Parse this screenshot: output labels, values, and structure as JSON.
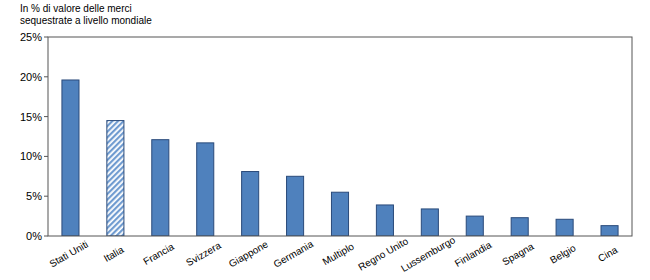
{
  "chart_data": {
    "type": "bar",
    "title": [
      "In % di valore delle merci",
      "sequestrate a livello mondiale"
    ],
    "categories": [
      "Stati Uniti",
      "Italia",
      "Francia",
      "Svizzera",
      "Giappone",
      "Germania",
      "Multiplo",
      "Regno Unito",
      "Lussemburgo",
      "Finlandia",
      "Spagna",
      "Belgio",
      "Cina"
    ],
    "values": [
      19.6,
      14.5,
      12.1,
      11.7,
      8.1,
      7.5,
      5.5,
      3.9,
      3.4,
      2.5,
      2.3,
      2.1,
      1.3
    ],
    "color": "#4f81bd",
    "colors": [
      "#4f81bd",
      "#6f9bd0",
      "#4f81bd",
      "#4f81bd",
      "#4f81bd",
      "#4f81bd",
      "#4f81bd",
      "#4f81bd",
      "#4f81bd",
      "#4f81bd",
      "#4f81bd",
      "#4f81bd",
      "#4f81bd"
    ],
    "ylim": [
      0,
      25
    ],
    "yticks": [
      {
        "value": 0,
        "label": "0%"
      },
      {
        "value": 5,
        "label": "5%"
      },
      {
        "value": 10,
        "label": "10%"
      },
      {
        "value": 15,
        "label": "15%"
      },
      {
        "value": 20,
        "label": "20%"
      },
      {
        "value": 25,
        "label": "25%"
      }
    ],
    "grid": false
  }
}
